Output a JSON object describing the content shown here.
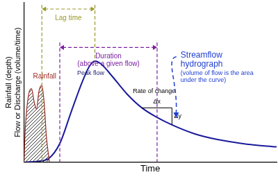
{
  "chart_data": {
    "type": "line",
    "x_label": "Time",
    "y_label": [
      "Rainfall (depth)",
      "Flow or Discharge (volume/time)"
    ],
    "xlim": [
      0,
      100
    ],
    "ylim": [
      0,
      100
    ],
    "tick_labels": false,
    "grid": false,
    "series": [
      {
        "name": "Rainfall",
        "type": "area",
        "color": "#9b2a22",
        "x": [
          0,
          0.6,
          1.8,
          3.0,
          4.1,
          5.0,
          5.9,
          7.1,
          8.0,
          8.9,
          10.1
        ],
        "values": [
          0,
          22.4,
          41.8,
          46.1,
          37.5,
          33.2,
          44.0,
          48.3,
          37.5,
          15.9,
          0
        ]
      },
      {
        "name": "Streamflow hydrograph",
        "type": "line",
        "color": "#1a1a9c",
        "x": [
          0.9,
          5.3,
          9.8,
          14.2,
          18.6,
          23.1,
          26.0,
          28.1,
          30.5,
          34.9,
          40.8,
          46.7,
          52.7,
          58.6,
          67.5,
          76.3,
          88.2,
          100
        ],
        "values": [
          0,
          0.4,
          2.2,
          11.6,
          31.0,
          50.4,
          60.3,
          63.4,
          61.6,
          53.9,
          42.7,
          34.0,
          28.0,
          23.3,
          17.7,
          14.2,
          11.2,
          9.5
        ]
      }
    ],
    "annotations": {
      "lag_time": "Lag time",
      "duration": "Duration",
      "duration_note": "(above a given flow)",
      "peak": "Peak flow",
      "rate": "Rate of change",
      "dx": "Δx",
      "dy": "Δy",
      "hydrograph_note": [
        "(volume of flow is the area",
        "under the curve)"
      ]
    }
  }
}
